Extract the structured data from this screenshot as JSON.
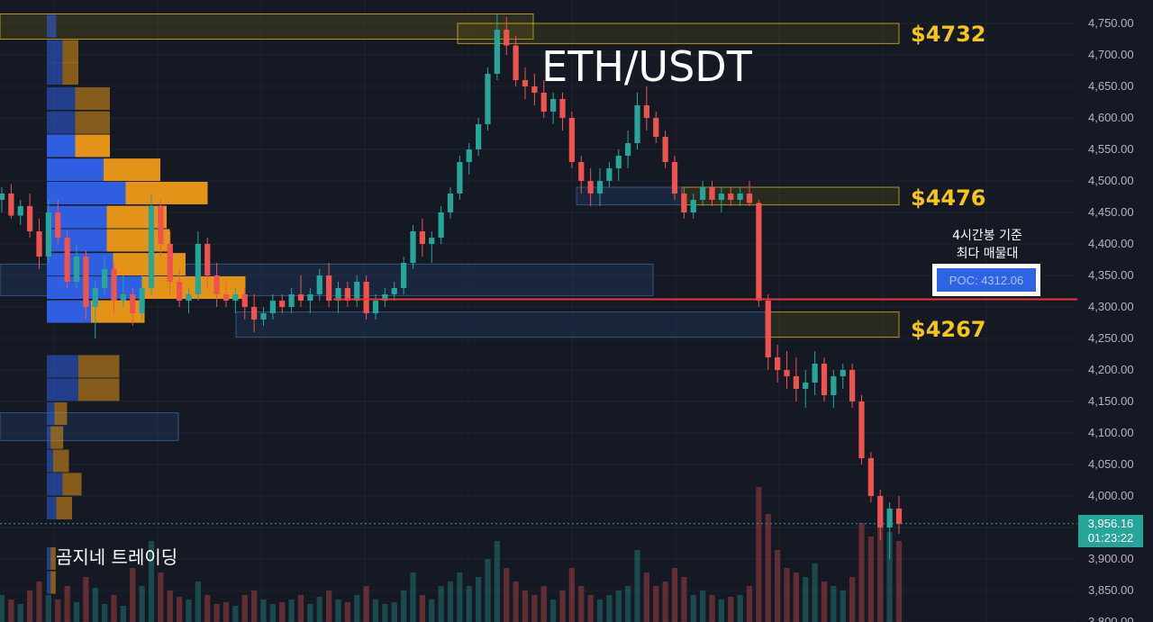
{
  "chart_data": {
    "type": "candlestick",
    "title": "ETH/USDT",
    "y_axis": {
      "ticks": [
        "4,750.00",
        "4,700.00",
        "4,650.00",
        "4,600.00",
        "4,550.00",
        "4,500.00",
        "4,450.00",
        "4,400.00",
        "4,350.00",
        "4,300.00",
        "4,250.00",
        "4,200.00",
        "4,150.00",
        "4,100.00",
        "4,050.00",
        "4,000.00",
        "3,950.00",
        "3,900.00",
        "3,850.00",
        "3,800.00"
      ],
      "range": [
        3800,
        4765
      ]
    },
    "current_price": {
      "price": "3,956.16",
      "countdown": "01:23:22",
      "value": 3956.16
    },
    "levels": [
      {
        "label": "$4732",
        "value": 4732
      },
      {
        "label": "$4476",
        "value": 4476
      },
      {
        "label": "$4267",
        "value": 4267
      }
    ],
    "poc": {
      "label": "POC: 4312.06",
      "value": 4312.06,
      "note_line1": "4시간봉 기준",
      "note_line2": "최다 매물대"
    },
    "brand": "곰지네 트레이딩",
    "colors": {
      "up": "#26a69a",
      "down": "#ef5350",
      "level": "#f5c518",
      "poc_line": "#e53935",
      "profile_blue": "#2f5fe0",
      "profile_orange": "#e39418",
      "background": "#151924"
    },
    "candles": [
      [
        4470,
        4490,
        4450,
        4480
      ],
      [
        4480,
        4495,
        4440,
        4445
      ],
      [
        4445,
        4470,
        4430,
        4460
      ],
      [
        4460,
        4480,
        4410,
        4420
      ],
      [
        4420,
        4440,
        4360,
        4380
      ],
      [
        4380,
        4470,
        4370,
        4450
      ],
      [
        4450,
        4470,
        4400,
        4410
      ],
      [
        4410,
        4420,
        4330,
        4340
      ],
      [
        4340,
        4400,
        4330,
        4380
      ],
      [
        4380,
        4390,
        4280,
        4300
      ],
      [
        4300,
        4340,
        4250,
        4330
      ],
      [
        4330,
        4380,
        4320,
        4360
      ],
      [
        4360,
        4370,
        4290,
        4310
      ],
      [
        4310,
        4350,
        4300,
        4320
      ],
      [
        4320,
        4330,
        4270,
        4290
      ],
      [
        4290,
        4350,
        4280,
        4330
      ],
      [
        4330,
        4480,
        4320,
        4460
      ],
      [
        4460,
        4470,
        4380,
        4400
      ],
      [
        4400,
        4420,
        4320,
        4340
      ],
      [
        4340,
        4360,
        4300,
        4310
      ],
      [
        4310,
        4330,
        4290,
        4320
      ],
      [
        4320,
        4420,
        4310,
        4400
      ],
      [
        4400,
        4410,
        4330,
        4350
      ],
      [
        4350,
        4370,
        4300,
        4320
      ],
      [
        4320,
        4340,
        4300,
        4310
      ],
      [
        4310,
        4330,
        4290,
        4320
      ],
      [
        4320,
        4330,
        4280,
        4300
      ],
      [
        4300,
        4320,
        4260,
        4280
      ],
      [
        4280,
        4300,
        4270,
        4290
      ],
      [
        4290,
        4320,
        4280,
        4310
      ],
      [
        4310,
        4320,
        4290,
        4300
      ],
      [
        4300,
        4330,
        4290,
        4320
      ],
      [
        4320,
        4350,
        4300,
        4310
      ],
      [
        4310,
        4330,
        4290,
        4320
      ],
      [
        4320,
        4360,
        4310,
        4350
      ],
      [
        4350,
        4370,
        4300,
        4310
      ],
      [
        4310,
        4340,
        4290,
        4330
      ],
      [
        4330,
        4340,
        4300,
        4310
      ],
      [
        4310,
        4350,
        4300,
        4340
      ],
      [
        4340,
        4350,
        4280,
        4290
      ],
      [
        4290,
        4320,
        4280,
        4310
      ],
      [
        4310,
        4330,
        4300,
        4320
      ],
      [
        4320,
        4340,
        4310,
        4330
      ],
      [
        4330,
        4380,
        4320,
        4370
      ],
      [
        4370,
        4430,
        4360,
        4420
      ],
      [
        4420,
        4440,
        4380,
        4400
      ],
      [
        4400,
        4420,
        4370,
        4410
      ],
      [
        4410,
        4460,
        4400,
        4450
      ],
      [
        4450,
        4490,
        4440,
        4480
      ],
      [
        4480,
        4540,
        4470,
        4530
      ],
      [
        4530,
        4560,
        4510,
        4550
      ],
      [
        4550,
        4600,
        4540,
        4590
      ],
      [
        4590,
        4680,
        4580,
        4670
      ],
      [
        4670,
        4765,
        4660,
        4740
      ],
      [
        4740,
        4760,
        4700,
        4715
      ],
      [
        4715,
        4730,
        4650,
        4660
      ],
      [
        4660,
        4680,
        4630,
        4650
      ],
      [
        4650,
        4670,
        4620,
        4640
      ],
      [
        4640,
        4660,
        4600,
        4610
      ],
      [
        4610,
        4640,
        4590,
        4630
      ],
      [
        4630,
        4640,
        4580,
        4600
      ],
      [
        4600,
        4610,
        4520,
        4530
      ],
      [
        4530,
        4540,
        4480,
        4500
      ],
      [
        4500,
        4520,
        4460,
        4480
      ],
      [
        4480,
        4520,
        4460,
        4500
      ],
      [
        4500,
        4530,
        4490,
        4520
      ],
      [
        4520,
        4550,
        4500,
        4540
      ],
      [
        4540,
        4580,
        4520,
        4560
      ],
      [
        4560,
        4640,
        4550,
        4620
      ],
      [
        4620,
        4650,
        4580,
        4600
      ],
      [
        4600,
        4610,
        4560,
        4570
      ],
      [
        4570,
        4580,
        4520,
        4530
      ],
      [
        4530,
        4540,
        4470,
        4480
      ],
      [
        4480,
        4490,
        4440,
        4450
      ],
      [
        4450,
        4480,
        4440,
        4470
      ],
      [
        4470,
        4500,
        4460,
        4490
      ],
      [
        4490,
        4500,
        4460,
        4470
      ],
      [
        4470,
        4490,
        4450,
        4480
      ],
      [
        4480,
        4490,
        4460,
        4470
      ],
      [
        4470,
        4490,
        4460,
        4480
      ],
      [
        4480,
        4500,
        4460,
        4465
      ],
      [
        4465,
        4470,
        4300,
        4310
      ],
      [
        4310,
        4320,
        4200,
        4220
      ],
      [
        4220,
        4240,
        4180,
        4200
      ],
      [
        4200,
        4230,
        4170,
        4190
      ],
      [
        4190,
        4220,
        4150,
        4170
      ],
      [
        4170,
        4200,
        4140,
        4180
      ],
      [
        4180,
        4230,
        4160,
        4210
      ],
      [
        4210,
        4220,
        4150,
        4160
      ],
      [
        4160,
        4200,
        4140,
        4190
      ],
      [
        4190,
        4210,
        4170,
        4200
      ],
      [
        4200,
        4210,
        4140,
        4150
      ],
      [
        4150,
        4160,
        4050,
        4060
      ],
      [
        4060,
        4070,
        3990,
        4000
      ],
      [
        4000,
        4010,
        3930,
        3950
      ],
      [
        3950,
        3990,
        3900,
        3980
      ],
      [
        3980,
        4000,
        3940,
        3956
      ]
    ],
    "volumes": [
      30,
      25,
      20,
      35,
      45,
      30,
      25,
      40,
      22,
      50,
      38,
      20,
      30,
      18,
      60,
      40,
      90,
      55,
      35,
      28,
      25,
      45,
      30,
      20,
      22,
      18,
      30,
      35,
      25,
      20,
      22,
      25,
      30,
      20,
      28,
      35,
      25,
      22,
      30,
      40,
      25,
      20,
      22,
      35,
      55,
      30,
      25,
      40,
      45,
      55,
      40,
      50,
      70,
      90,
      60,
      45,
      35,
      30,
      40,
      25,
      35,
      60,
      40,
      30,
      25,
      30,
      35,
      40,
      80,
      55,
      40,
      45,
      60,
      50,
      30,
      35,
      30,
      25,
      28,
      30,
      40,
      150,
      120,
      80,
      60,
      55,
      50,
      65,
      45,
      40,
      35,
      50,
      110,
      95,
      140,
      100,
      90
    ],
    "volume_profile": [
      {
        "price": 4745,
        "buy": 0.15,
        "sell": 0.0
      },
      {
        "price": 4705,
        "buy": 0.25,
        "sell": 0.25
      },
      {
        "price": 4670,
        "buy": 0.25,
        "sell": 0.25
      },
      {
        "price": 4630,
        "buy": 0.45,
        "sell": 0.55
      },
      {
        "price": 4592,
        "buy": 0.45,
        "sell": 0.55
      },
      {
        "price": 4555,
        "buy": 0.45,
        "sell": 0.55
      },
      {
        "price": 4517,
        "buy": 0.9,
        "sell": 0.9
      },
      {
        "price": 4480,
        "buy": 1.25,
        "sell": 1.3
      },
      {
        "price": 4442,
        "buy": 0.95,
        "sell": 0.95
      },
      {
        "price": 4405,
        "buy": 0.95,
        "sell": 1.0
      },
      {
        "price": 4367,
        "buy": 1.05,
        "sell": 1.15
      },
      {
        "price": 4330,
        "buy": 1.5,
        "sell": 1.65
      },
      {
        "price": 4292,
        "buy": 0.7,
        "sell": 0.85
      },
      {
        "price": 4205,
        "buy": 0.5,
        "sell": 0.65
      },
      {
        "price": 4168,
        "buy": 0.5,
        "sell": 0.65
      },
      {
        "price": 4130,
        "buy": 0.12,
        "sell": 0.2
      },
      {
        "price": 4092,
        "buy": 0.06,
        "sell": 0.2
      },
      {
        "price": 4055,
        "buy": 0.1,
        "sell": 0.25
      },
      {
        "price": 4018,
        "buy": 0.25,
        "sell": 0.3
      },
      {
        "price": 3980,
        "buy": 0.15,
        "sell": 0.25
      },
      {
        "price": 3900,
        "buy": 0.06,
        "sell": 0.08
      },
      {
        "price": 3862,
        "buy": 0.06,
        "sell": 0.08
      }
    ],
    "zones": [
      {
        "top": 4765,
        "bottom": 4725,
        "color": "#f5c518",
        "fill": "rgba(120,110,20,0.25)"
      },
      {
        "top": 4750,
        "bottom": 4718,
        "color": "#f5c518",
        "fill": "rgba(120,110,20,0.20)"
      },
      {
        "top": 4490,
        "bottom": 4462,
        "color": "#f5c518",
        "fill": "rgba(120,110,20,0.22)"
      },
      {
        "top": 4490,
        "bottom": 4462,
        "color": "#3d6ea8",
        "fill": "rgba(40,80,140,0.25)"
      },
      {
        "top": 4368,
        "bottom": 4318,
        "color": "#3d6ea8",
        "fill": "rgba(40,80,140,0.25)"
      },
      {
        "top": 4292,
        "bottom": 4252,
        "color": "#f5c518",
        "fill": "rgba(120,110,20,0.22)"
      },
      {
        "top": 4292,
        "bottom": 4252,
        "color": "#3d6ea8",
        "fill": "rgba(40,80,140,0.22)"
      },
      {
        "top": 4132,
        "bottom": 4088,
        "color": "#3d6ea8",
        "fill": "rgba(40,80,140,0.25)"
      }
    ]
  }
}
